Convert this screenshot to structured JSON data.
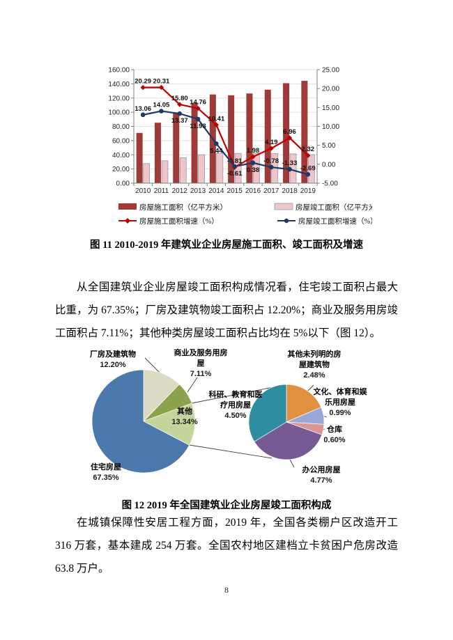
{
  "figures": {
    "fig11_caption": "图 11  2010-2019 年建筑业企业房屋施工面积、竣工面积及增速",
    "fig12_caption": "图 12  2019 年全国建筑业企业房屋竣工面积构成"
  },
  "paragraphs": {
    "p1": "从全国建筑业企业房屋竣工面积构成情况看，住宅竣工面积占最大比重，为 67.35%；厂房及建筑物竣工面积占 12.20%；商业及服务用房竣工面积占 7.11%；其他种类房屋竣工面积占比均在 5%以下（图 12）。",
    "p2": "在城镇保障性安居工程方面，2019 年，全国各类棚户区改造开工 316 万套，基本建成 254 万套。全国农村地区建档立卡贫困户危房改造 63.8 万户。"
  },
  "page": {
    "number": "8"
  },
  "chart_data": [
    {
      "type": "bar",
      "subtype": "combo-bar-line-dual-axis",
      "categories": [
        "2010",
        "2011",
        "2012",
        "2013",
        "2014",
        "2015",
        "2016",
        "2017",
        "2018",
        "2019"
      ],
      "series": [
        {
          "name": "房屋施工面积（亿平方米）",
          "type": "bar",
          "axis": "left",
          "color": "#9E3A38",
          "values": [
            70.8,
            85.2,
            98.6,
            113.2,
            125.0,
            123.9,
            126.4,
            131.7,
            140.9,
            144.2
          ]
        },
        {
          "name": "房屋竣工面积（亿平方米）",
          "type": "bar",
          "axis": "left",
          "color": "#EFC6C8",
          "border": "#8A9BB0",
          "values": [
            27.7,
            31.6,
            35.8,
            40.1,
            42.3,
            42.0,
            42.2,
            41.9,
            41.3,
            40.2
          ]
        },
        {
          "name": "房屋施工面积增速（%）",
          "type": "line",
          "axis": "right",
          "color": "#C00000",
          "marker": "diamond",
          "values": [
            20.29,
            20.31,
            15.8,
            14.76,
            10.41,
            -0.81,
            1.98,
            4.19,
            6.96,
            2.32
          ],
          "labels": [
            "20.29",
            "20.31",
            "15.80",
            "14.76",
            "10.41",
            "-0.81",
            "1.98",
            "4.19",
            "6.96",
            "2.32"
          ],
          "label_side": [
            "above",
            "above",
            "above",
            "above",
            "above",
            "above",
            "above",
            "above",
            "above",
            "above"
          ]
        },
        {
          "name": "房屋竣工面积增速（%）",
          "type": "line",
          "axis": "right",
          "color": "#1F3864",
          "marker": "circle",
          "values": [
            13.06,
            14.05,
            13.37,
            11.93,
            5.44,
            -0.61,
            0.38,
            -0.78,
            -1.33,
            -2.69
          ],
          "labels": [
            "13.06",
            "14.05",
            "13.37",
            "11.93",
            "5.44",
            "-0.61",
            "0.38",
            "-0.78",
            "-1.33",
            "-2.69"
          ],
          "label_side": [
            "above",
            "above",
            "below",
            "below",
            "below",
            "below",
            "below",
            "above",
            "above",
            "above"
          ]
        }
      ],
      "left_axis": {
        "min": 0,
        "max": 160,
        "step": 20,
        "ticks": [
          "0.00",
          "20.00",
          "40.00",
          "60.00",
          "80.00",
          "100.00",
          "120.00",
          "140.00",
          "160.00"
        ]
      },
      "right_axis": {
        "min": -5,
        "max": 25,
        "step": 5,
        "ticks": [
          "-5.00",
          "0.00",
          "5.00",
          "10.00",
          "15.00",
          "20.00",
          "25.00"
        ]
      },
      "grid": true,
      "legend_position": "bottom"
    },
    {
      "type": "pie",
      "name": "2019年房屋竣工面积构成（主图）",
      "start_angle_deg": -90,
      "clockwise": true,
      "slices": [
        {
          "label": "厂房及建筑物",
          "pct": "12.20%",
          "value": 12.2,
          "color": "#DBDAC2"
        },
        {
          "label": "商业及服务用房\n屋",
          "pct": "7.11%",
          "value": 7.11,
          "color": "#8CA34D"
        },
        {
          "label": "其他",
          "pct": "13.34%",
          "value": 13.34,
          "color": "#C3D59B"
        },
        {
          "label": "住宅房屋",
          "pct": "67.35%",
          "value": 67.35,
          "color": "#4C79AC"
        }
      ]
    },
    {
      "type": "pie",
      "name": "其他（13.34%）明细（子图）",
      "start_angle_deg": -90,
      "clockwise": true,
      "slices": [
        {
          "label": "其他未列明的房\n屋建筑物",
          "pct": "2.48%",
          "value": 2.48,
          "color": "#E0903E"
        },
        {
          "label": "文化、体育和娱\n乐用房屋",
          "pct": "0.99%",
          "value": 0.99,
          "color": "#98A8D8"
        },
        {
          "label": "仓库",
          "pct": "0.60%",
          "value": 0.6,
          "color": "#D99694"
        },
        {
          "label": "办公用房屋",
          "pct": "4.77%",
          "value": 4.77,
          "color": "#775A93"
        },
        {
          "label": "科研、教育和医\n疗用房屋",
          "pct": "4.50%",
          "value": 4.5,
          "color": "#2E8DA0"
        }
      ]
    }
  ]
}
